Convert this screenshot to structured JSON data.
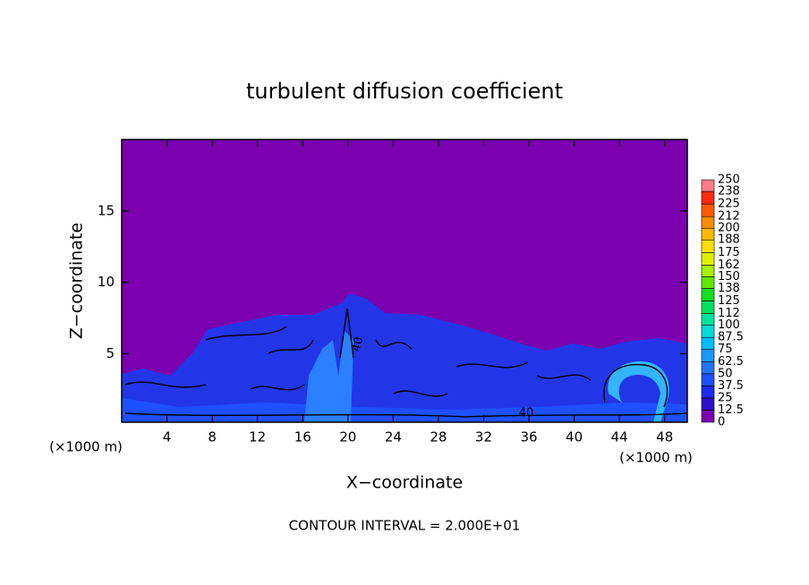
{
  "chart_data": {
    "type": "contour",
    "title": "turbulent diffusion coefficient",
    "xlabel": "X−coordinate",
    "ylabel": "Z−coordinate",
    "x_unit": "(×1000 m)",
    "footer": "CONTOUR INTERVAL = 2.000E+01",
    "contour_labels": [
      "40",
      "40"
    ],
    "xlim": [
      0,
      50
    ],
    "xticks": [
      4,
      8,
      12,
      16,
      20,
      24,
      28,
      32,
      36,
      40,
      44,
      48
    ],
    "ylim": [
      0.2,
      20
    ],
    "yticks": [
      5,
      10,
      15
    ],
    "colorbar": {
      "levels": [
        0,
        12.5,
        25,
        37.5,
        50,
        62.5,
        75,
        87.5,
        100,
        112,
        125,
        138,
        150,
        162,
        175,
        188,
        200,
        212,
        225,
        238,
        250
      ],
      "colors": [
        "#7a00b0",
        "#2b10c8",
        "#1c2cf0",
        "#1e50ff",
        "#2474ff",
        "#1c98ff",
        "#00bcff",
        "#00dcd8",
        "#00e49c",
        "#00e060",
        "#10e020",
        "#60e800",
        "#a8f000",
        "#e0f000",
        "#ffe000",
        "#ffb800",
        "#ff8c00",
        "#ff5a00",
        "#ff2a10",
        "#ff7a8c"
      ]
    }
  }
}
